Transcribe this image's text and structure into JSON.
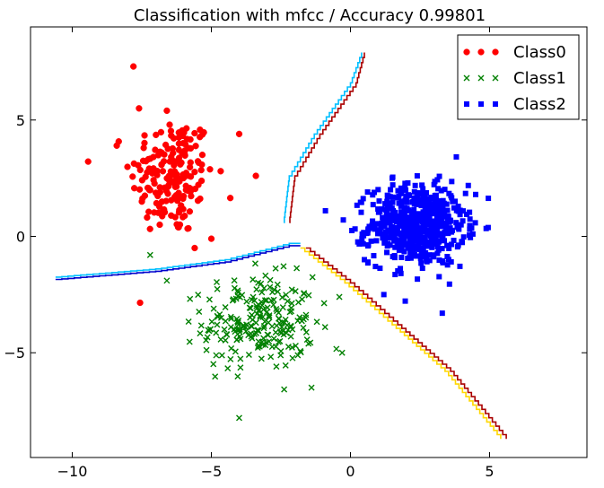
{
  "chart_data": {
    "type": "scatter",
    "title": "Classification with mfcc / Accuracy 0.99801",
    "xlabel": "",
    "ylabel": "",
    "xlim": [
      -11.5,
      8.5
    ],
    "ylim": [
      -9.5,
      9.0
    ],
    "xticks": [
      -10,
      -5,
      0,
      5
    ],
    "xtick_labels": [
      "−10",
      "−5",
      "0",
      "5"
    ],
    "yticks": [
      -5,
      0,
      5
    ],
    "ytick_labels": [
      "−5",
      "0",
      "5"
    ],
    "grid": false,
    "legend_position": "top-right",
    "series": [
      {
        "name": "Class0",
        "marker": "circle",
        "color": "#ff0000",
        "center": [
          -6.4,
          2.6
        ],
        "spread": [
          0.75,
          1.3
        ],
        "count": 180,
        "extra_points": [
          [
            -7.8,
            7.3
          ],
          [
            -7.6,
            5.5
          ],
          [
            -6.6,
            5.4
          ],
          [
            -4.0,
            4.4
          ],
          [
            -3.4,
            2.6
          ],
          [
            -5.6,
            -0.5
          ],
          [
            -5.0,
            -0.1
          ],
          [
            -8.4,
            3.9
          ]
        ]
      },
      {
        "name": "Class1",
        "marker": "x",
        "color": "#008000",
        "center": [
          -3.3,
          -3.7
        ],
        "spread": [
          1.0,
          1.0
        ],
        "count": 230,
        "extra_points": [
          [
            -4.0,
            -7.8
          ],
          [
            -7.2,
            -0.8
          ],
          [
            -6.6,
            -1.9
          ],
          [
            -1.4,
            -6.5
          ],
          [
            -0.3,
            -5.0
          ],
          [
            -0.4,
            -2.6
          ]
        ]
      },
      {
        "name": "Class2",
        "marker": "square",
        "color": "#0000ff",
        "center": [
          2.4,
          0.5
        ],
        "spread": [
          0.85,
          0.85
        ],
        "count": 600,
        "extra_points": [
          [
            3.3,
            -3.3
          ],
          [
            1.2,
            -2.5
          ],
          [
            -0.9,
            1.1
          ],
          [
            4.5,
            1.8
          ],
          [
            4.4,
            0.1
          ],
          [
            1.5,
            2.5
          ],
          [
            2.4,
            2.6
          ],
          [
            0.5,
            -1.0
          ]
        ]
      }
    ],
    "decision_boundaries": [
      {
        "color": "#00bfff",
        "points": [
          [
            -10.6,
            -1.75
          ],
          [
            -7.0,
            -1.4
          ],
          [
            -4.5,
            -1.0
          ],
          [
            -2.2,
            -0.3
          ],
          [
            -1.8,
            -0.3
          ]
        ]
      },
      {
        "color": "#0000cc",
        "points": [
          [
            -10.6,
            -1.85
          ],
          [
            -7.0,
            -1.5
          ],
          [
            -4.5,
            -1.1
          ],
          [
            -2.2,
            -0.4
          ],
          [
            -1.8,
            -0.4
          ]
        ]
      },
      {
        "color": "#00bfff",
        "points": [
          [
            -2.4,
            0.6
          ],
          [
            -2.2,
            2.6
          ],
          [
            -1.3,
            4.4
          ],
          [
            0.0,
            6.6
          ],
          [
            0.4,
            7.9
          ]
        ]
      },
      {
        "color": "#aa0000",
        "points": [
          [
            -2.2,
            0.6
          ],
          [
            -2.0,
            2.6
          ],
          [
            -1.1,
            4.4
          ],
          [
            0.2,
            6.6
          ],
          [
            0.5,
            7.9
          ]
        ]
      },
      {
        "color": "#ffd700",
        "points": [
          [
            -1.8,
            -0.5
          ],
          [
            -0.2,
            -2.0
          ],
          [
            1.5,
            -3.8
          ],
          [
            3.4,
            -5.8
          ],
          [
            5.4,
            -8.7
          ]
        ]
      },
      {
        "color": "#aa0000",
        "points": [
          [
            -1.6,
            -0.5
          ],
          [
            0.0,
            -2.0
          ],
          [
            1.7,
            -3.8
          ],
          [
            3.6,
            -5.8
          ],
          [
            5.6,
            -8.7
          ]
        ]
      }
    ]
  }
}
